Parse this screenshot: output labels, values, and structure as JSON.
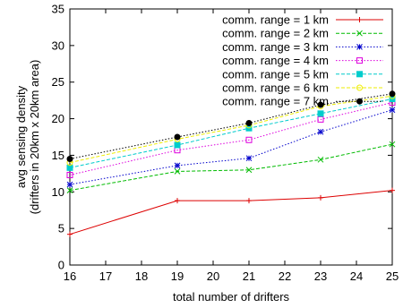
{
  "chart_data": {
    "type": "line",
    "xlabel": "total number of drifters",
    "ylabel_lines": [
      "avg sensing density",
      "(drifters in 20km x 20km area)"
    ],
    "xlim": [
      16,
      25
    ],
    "ylim": [
      0,
      35
    ],
    "xticks": [
      "16",
      "17",
      "18",
      "19",
      "20",
      "21",
      "22",
      "23",
      "24",
      "25"
    ],
    "yticks": [
      "0",
      "5",
      "10",
      "15",
      "20",
      "25",
      "30",
      "35"
    ],
    "grid": false,
    "legend_position": "top-right",
    "x": [
      16,
      19,
      21,
      23,
      25
    ],
    "series": [
      {
        "name": "comm. range = 1 km",
        "color": "#dd0000",
        "dash": "solid",
        "marker": "plus",
        "values": [
          4.2,
          8.8,
          8.8,
          9.2,
          10.2
        ]
      },
      {
        "name": "comm. range = 2 km",
        "color": "#00bb00",
        "dash": "dashed",
        "marker": "x",
        "values": [
          10.2,
          12.8,
          13.0,
          14.4,
          16.5
        ]
      },
      {
        "name": "comm. range = 3 km",
        "color": "#0000cc",
        "dash": "dotted",
        "marker": "star",
        "values": [
          11.0,
          13.6,
          14.6,
          18.2,
          21.2
        ]
      },
      {
        "name": "comm. range = 4 km",
        "color": "#dd00dd",
        "dash": "dotted",
        "marker": "square",
        "values": [
          12.3,
          15.7,
          17.1,
          19.9,
          22.2
        ]
      },
      {
        "name": "comm. range = 5 km",
        "color": "#00cccc",
        "dash": "dashed",
        "marker": "filled-square",
        "values": [
          13.3,
          16.4,
          18.7,
          20.7,
          22.7
        ]
      },
      {
        "name": "comm. range = 6 km",
        "color": "#eeee00",
        "dash": "dashed",
        "marker": "circle",
        "values": [
          14.0,
          17.2,
          19.1,
          21.7,
          23.1
        ]
      },
      {
        "name": "comm. range = 7 km",
        "color": "#000000",
        "dash": "dotted",
        "marker": "filled-circle",
        "values": [
          14.5,
          17.5,
          19.4,
          21.9,
          23.4
        ]
      }
    ]
  }
}
